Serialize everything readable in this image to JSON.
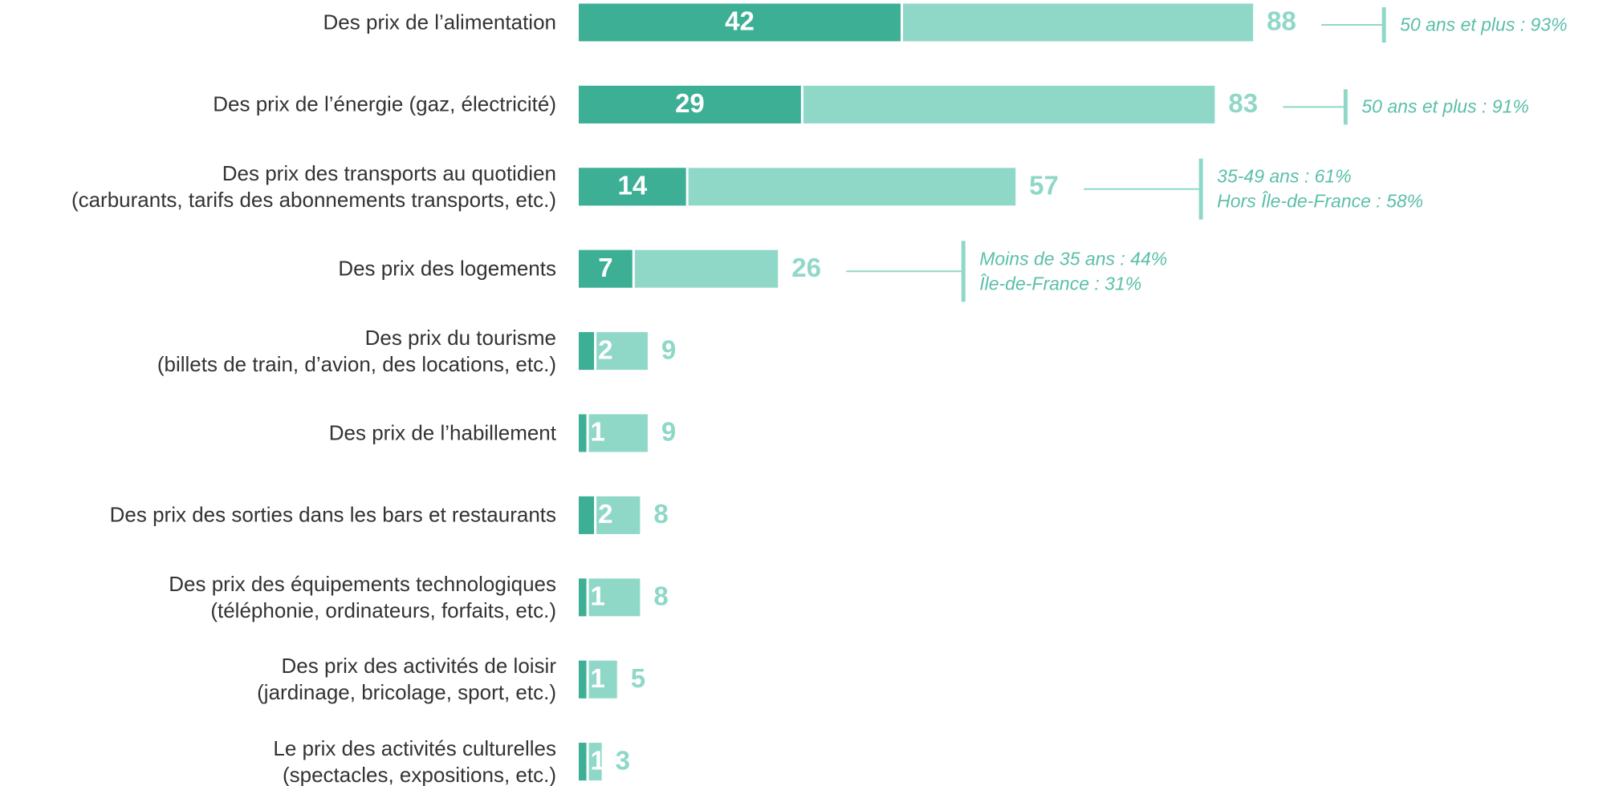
{
  "chart_data": {
    "type": "bar",
    "categories": [
      "Des prix de l’alimentation",
      "Des prix de l’énergie (gaz, électricité)",
      "Des prix des transports au quotidien\n(carburants, tarifs des abonnements transports, etc.)",
      "Des prix des logements",
      "Des prix du tourisme\n(billets de train, d’avion, des locations, etc.)",
      "Des prix de l’habillement",
      "Des prix des sorties dans les bars et restaurants",
      "Des prix des équipements technologiques\n(téléphonie, ordinateurs, forfaits, etc.)",
      "Des prix des activités de loisir\n(jardinage, bricolage, sport, etc.)",
      "Le prix des activités culturelles\n(spectacles, expositions, etc.)"
    ],
    "series": [
      {
        "color": "#8fd8c8",
        "values": [
          88,
          83,
          57,
          26,
          9,
          9,
          8,
          8,
          5,
          3
        ]
      },
      {
        "color": "#3daf94",
        "values": [
          42,
          29,
          14,
          7,
          2,
          1,
          2,
          1,
          1,
          1
        ]
      }
    ],
    "xlim": [
      0,
      100
    ],
    "annotations": [
      [
        "50 ans et plus : 93%"
      ],
      [
        "50 ans et plus : 91%"
      ],
      [
        "35-49 ans : 61%",
        "Hors Île-de-France : 58%"
      ],
      [
        "Moins de 35 ans : 44%",
        "Île-de-France : 31%"
      ],
      null,
      null,
      null,
      null,
      null,
      null
    ]
  }
}
